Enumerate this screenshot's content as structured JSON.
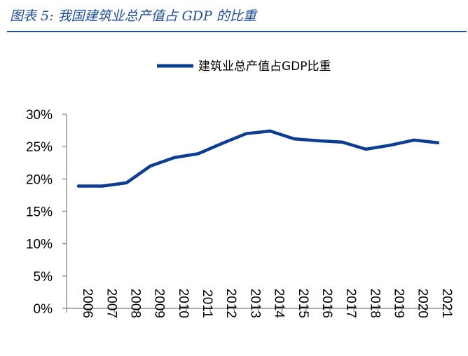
{
  "figure_title": "图表 5:  我国建筑业总产值占 GDP 的比重",
  "colors": {
    "title": "#1f4e9c",
    "series": "#0b3d91",
    "axis": "#7f7f7f"
  },
  "chart_data": {
    "type": "line",
    "title": "",
    "xlabel": "",
    "ylabel": "",
    "x": [
      "2006",
      "2007",
      "2008",
      "2009",
      "2010",
      "2011",
      "2012",
      "2013",
      "2014",
      "2015",
      "2016",
      "2017",
      "2018",
      "2019",
      "2020",
      "2021"
    ],
    "series": [
      {
        "name": "建筑业总产值占GDP比重",
        "values": [
          18.9,
          18.9,
          19.4,
          22.0,
          23.3,
          23.9,
          25.5,
          27.0,
          27.4,
          26.2,
          25.9,
          25.7,
          24.6,
          25.2,
          26.0,
          25.6
        ]
      }
    ],
    "ylim": [
      0,
      30
    ],
    "yticks": [
      0,
      5,
      10,
      15,
      20,
      25,
      30
    ],
    "ytick_labels": [
      "0%",
      "5%",
      "10%",
      "15%",
      "20%",
      "25%",
      "30%"
    ],
    "legend_position": "top",
    "grid": false
  }
}
